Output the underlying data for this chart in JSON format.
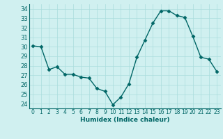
{
  "x": [
    0,
    1,
    2,
    3,
    4,
    5,
    6,
    7,
    8,
    9,
    10,
    11,
    12,
    13,
    14,
    15,
    16,
    17,
    18,
    19,
    20,
    21,
    22,
    23
  ],
  "y": [
    30.1,
    30.0,
    27.6,
    27.9,
    27.1,
    27.1,
    26.8,
    26.7,
    25.6,
    25.3,
    23.9,
    24.7,
    26.1,
    28.9,
    30.7,
    32.5,
    33.8,
    33.8,
    33.3,
    33.1,
    31.1,
    28.9,
    28.7,
    27.4
  ],
  "xlabel": "Humidex (Indice chaleur)",
  "ylim": [
    23.5,
    34.5
  ],
  "xlim": [
    -0.5,
    23.5
  ],
  "yticks": [
    24,
    25,
    26,
    27,
    28,
    29,
    30,
    31,
    32,
    33,
    34
  ],
  "xticks": [
    0,
    1,
    2,
    3,
    4,
    5,
    6,
    7,
    8,
    9,
    10,
    11,
    12,
    13,
    14,
    15,
    16,
    17,
    18,
    19,
    20,
    21,
    22,
    23
  ],
  "line_color": "#006666",
  "marker_color": "#006666",
  "bg_color": "#d0f0f0",
  "grid_color": "#aadddd",
  "tick_label_color": "#006666",
  "label_color": "#006666",
  "marker": "D",
  "markersize": 2.5,
  "linewidth": 1.0
}
